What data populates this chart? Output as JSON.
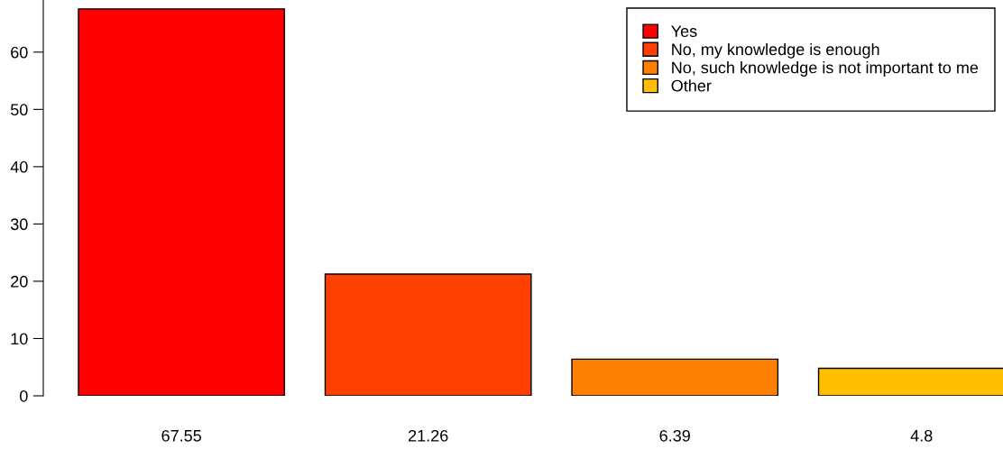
{
  "chart_data": {
    "type": "bar",
    "stacked": true,
    "categories": [
      null,
      null,
      null,
      null
    ],
    "series": [
      {
        "name": "Yes",
        "color": "#ff0000",
        "values": [
          67.55,
          null,
          null,
          null
        ]
      },
      {
        "name": "No, my knowledge is enough",
        "color": "#ff4000",
        "values": [
          null,
          21.26,
          null,
          null
        ]
      },
      {
        "name": "No, such knowledge is not important to me",
        "color": "#ff8000",
        "values": [
          null,
          null,
          6.39,
          null
        ]
      },
      {
        "name": "Other",
        "color": "#ffbf00",
        "values": [
          null,
          null,
          null,
          4.8
        ]
      }
    ],
    "ylim": [
      0,
      69.1
    ],
    "yticks": [
      0,
      10,
      20,
      30,
      40,
      50,
      60
    ],
    "data_labels": true,
    "legend": "top right",
    "grid": false
  }
}
